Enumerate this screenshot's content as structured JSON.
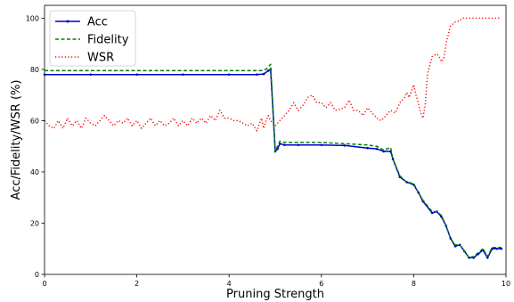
{
  "chart_data": {
    "type": "line",
    "title": "",
    "xlabel": "Pruning Strength",
    "ylabel": "Acc/Fidelity/WSR (%)",
    "xlim": [
      0,
      10
    ],
    "ylim": [
      0,
      105
    ],
    "xticks": [
      "0",
      "2",
      "4",
      "6",
      "8",
      "10"
    ],
    "yticks": [
      "0",
      "20",
      "40",
      "60",
      "80",
      "100"
    ],
    "grid": false,
    "legend_position": "top-left",
    "series": [
      {
        "name": "Acc",
        "color": "#0000cc",
        "style": "solid-dot",
        "points": [
          [
            0,
            78
          ],
          [
            1,
            78
          ],
          [
            2,
            78
          ],
          [
            3,
            78
          ],
          [
            4,
            78
          ],
          [
            4.6,
            78
          ],
          [
            4.75,
            78.2
          ],
          [
            4.85,
            79.5
          ],
          [
            4.9,
            80
          ],
          [
            5.0,
            48
          ],
          [
            5.05,
            49
          ],
          [
            5.1,
            51
          ],
          [
            5.2,
            50.5
          ],
          [
            5.5,
            50.5
          ],
          [
            6,
            50.5
          ],
          [
            6.5,
            50.3
          ],
          [
            7,
            49.3
          ],
          [
            7.2,
            49
          ],
          [
            7.35,
            48
          ],
          [
            7.5,
            48
          ],
          [
            7.55,
            45
          ],
          [
            7.7,
            38
          ],
          [
            7.85,
            36
          ],
          [
            8.0,
            35
          ],
          [
            8.1,
            32
          ],
          [
            8.2,
            28.5
          ],
          [
            8.4,
            24
          ],
          [
            8.5,
            24.5
          ],
          [
            8.6,
            22.5
          ],
          [
            8.7,
            19
          ],
          [
            8.8,
            14
          ],
          [
            8.9,
            11
          ],
          [
            9.0,
            11.5
          ],
          [
            9.1,
            9
          ],
          [
            9.2,
            6.5
          ],
          [
            9.3,
            6.5
          ],
          [
            9.4,
            8
          ],
          [
            9.5,
            9.5
          ],
          [
            9.6,
            6.5
          ],
          [
            9.7,
            10
          ],
          [
            9.8,
            10
          ],
          [
            9.9,
            10
          ]
        ]
      },
      {
        "name": "Fidelity",
        "color": "#008000",
        "style": "dashed",
        "points": [
          [
            0,
            79.5
          ],
          [
            1,
            79.5
          ],
          [
            2,
            79.5
          ],
          [
            3,
            79.5
          ],
          [
            4,
            79.5
          ],
          [
            4.7,
            79.5
          ],
          [
            4.8,
            80
          ],
          [
            4.9,
            82
          ],
          [
            5.0,
            48
          ],
          [
            5.05,
            50
          ],
          [
            5.1,
            52
          ],
          [
            5.2,
            51.5
          ],
          [
            5.5,
            51.5
          ],
          [
            6,
            51.5
          ],
          [
            6.5,
            51
          ],
          [
            7,
            50.5
          ],
          [
            7.2,
            50
          ],
          [
            7.35,
            48.5
          ],
          [
            7.5,
            49.5
          ],
          [
            7.55,
            45
          ],
          [
            7.7,
            38.5
          ],
          [
            7.85,
            36
          ],
          [
            8.0,
            35.5
          ],
          [
            8.1,
            32
          ],
          [
            8.2,
            29
          ],
          [
            8.4,
            24.5
          ],
          [
            8.5,
            24.5
          ],
          [
            8.6,
            23
          ],
          [
            8.7,
            19
          ],
          [
            8.8,
            14
          ],
          [
            8.9,
            11.5
          ],
          [
            9.0,
            11.5
          ],
          [
            9.1,
            9
          ],
          [
            9.2,
            6.5
          ],
          [
            9.3,
            7
          ],
          [
            9.4,
            8.5
          ],
          [
            9.5,
            10
          ],
          [
            9.6,
            7
          ],
          [
            9.7,
            10.5
          ],
          [
            9.8,
            10.5
          ],
          [
            9.9,
            10.5
          ]
        ]
      },
      {
        "name": "WSR",
        "color": "#ff0000",
        "style": "dotted",
        "points": [
          [
            0,
            60
          ],
          [
            0.1,
            58
          ],
          [
            0.2,
            57
          ],
          [
            0.3,
            60
          ],
          [
            0.4,
            57
          ],
          [
            0.5,
            61
          ],
          [
            0.6,
            58
          ],
          [
            0.7,
            60
          ],
          [
            0.8,
            57
          ],
          [
            0.9,
            61
          ],
          [
            1.0,
            59
          ],
          [
            1.1,
            58
          ],
          [
            1.2,
            60
          ],
          [
            1.3,
            62
          ],
          [
            1.4,
            60
          ],
          [
            1.5,
            58
          ],
          [
            1.6,
            60
          ],
          [
            1.7,
            59
          ],
          [
            1.8,
            61
          ],
          [
            1.9,
            58
          ],
          [
            2.0,
            60
          ],
          [
            2.1,
            57
          ],
          [
            2.2,
            59
          ],
          [
            2.3,
            61
          ],
          [
            2.4,
            58
          ],
          [
            2.5,
            60
          ],
          [
            2.6,
            58
          ],
          [
            2.7,
            59
          ],
          [
            2.8,
            61
          ],
          [
            2.9,
            58
          ],
          [
            3.0,
            60
          ],
          [
            3.1,
            58
          ],
          [
            3.2,
            61
          ],
          [
            3.3,
            59
          ],
          [
            3.4,
            61
          ],
          [
            3.5,
            59
          ],
          [
            3.6,
            62
          ],
          [
            3.7,
            60
          ],
          [
            3.8,
            64
          ],
          [
            3.9,
            61
          ],
          [
            4.0,
            61
          ],
          [
            4.1,
            60
          ],
          [
            4.2,
            60
          ],
          [
            4.3,
            59
          ],
          [
            4.4,
            58
          ],
          [
            4.5,
            59
          ],
          [
            4.6,
            56
          ],
          [
            4.7,
            61
          ],
          [
            4.75,
            57
          ],
          [
            4.8,
            60
          ],
          [
            4.85,
            62
          ],
          [
            4.9,
            60
          ],
          [
            5.0,
            58
          ],
          [
            5.1,
            60
          ],
          [
            5.2,
            62
          ],
          [
            5.3,
            64
          ],
          [
            5.4,
            67
          ],
          [
            5.5,
            64
          ],
          [
            5.6,
            66
          ],
          [
            5.7,
            69
          ],
          [
            5.8,
            70
          ],
          [
            5.9,
            67
          ],
          [
            6.0,
            67
          ],
          [
            6.1,
            65
          ],
          [
            6.2,
            67
          ],
          [
            6.3,
            64
          ],
          [
            6.5,
            65
          ],
          [
            6.6,
            68
          ],
          [
            6.7,
            64
          ],
          [
            6.8,
            64
          ],
          [
            6.9,
            62
          ],
          [
            7.0,
            65
          ],
          [
            7.1,
            63
          ],
          [
            7.2,
            61
          ],
          [
            7.3,
            60
          ],
          [
            7.4,
            62
          ],
          [
            7.5,
            64
          ],
          [
            7.6,
            63
          ],
          [
            7.7,
            67
          ],
          [
            7.8,
            69
          ],
          [
            7.85,
            71
          ],
          [
            7.9,
            69
          ],
          [
            8.0,
            74
          ],
          [
            8.05,
            70
          ],
          [
            8.1,
            67
          ],
          [
            8.15,
            63
          ],
          [
            8.2,
            61
          ],
          [
            8.25,
            66
          ],
          [
            8.3,
            78
          ],
          [
            8.4,
            85
          ],
          [
            8.5,
            86
          ],
          [
            8.55,
            85
          ],
          [
            8.6,
            83
          ],
          [
            8.65,
            84
          ],
          [
            8.7,
            90
          ],
          [
            8.8,
            97
          ],
          [
            8.9,
            98.5
          ],
          [
            9.0,
            99
          ],
          [
            9.05,
            100
          ],
          [
            9.2,
            100
          ],
          [
            9.5,
            100
          ],
          [
            9.8,
            100
          ],
          [
            9.9,
            100
          ]
        ]
      }
    ]
  }
}
